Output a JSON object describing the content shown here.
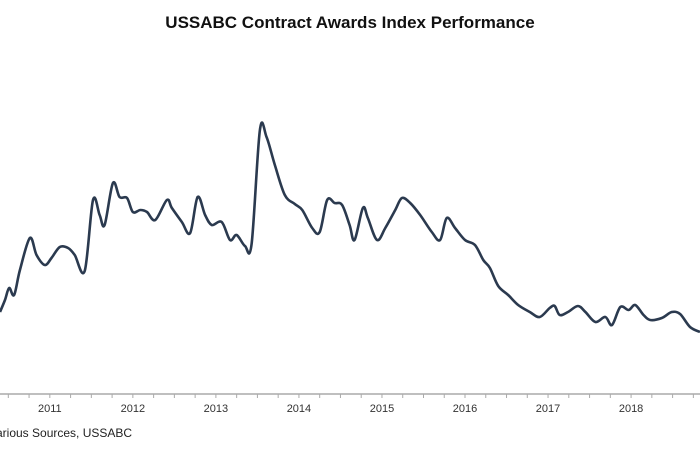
{
  "chart_data": {
    "type": "line",
    "title": "USSABC Contract Awards Index Performance",
    "source": "arious Sources, USSABC",
    "xlabel": "",
    "ylabel": "",
    "x_tick_labels": [
      "2011",
      "2012",
      "2013",
      "2014",
      "2015",
      "2016",
      "2017",
      "2018"
    ],
    "xlim": [
      2010.9,
      2019.33
    ],
    "ylim": [
      0,
      400
    ],
    "grid": false,
    "line_color": "#2b3a4f",
    "axis_color": "#aaaaaa",
    "series": [
      {
        "x": [
          2010.9,
          2010.96,
          2011.01,
          2011.07,
          2011.14,
          2011.26,
          2011.34,
          2011.44,
          2011.52,
          2011.62,
          2011.72,
          2011.8,
          2011.92,
          2012.02,
          2012.1,
          2012.16,
          2012.26,
          2012.34,
          2012.43,
          2012.5,
          2012.59,
          2012.67,
          2012.77,
          2012.91,
          2012.97,
          2013.09,
          2013.19,
          2013.28,
          2013.37,
          2013.45,
          2013.57,
          2013.67,
          2013.75,
          2013.85,
          2013.93,
          2014.03,
          2014.11,
          2014.21,
          2014.33,
          2014.45,
          2014.54,
          2014.66,
          2014.75,
          2014.84,
          2014.93,
          2015.02,
          2015.11,
          2015.17,
          2015.27,
          2015.33,
          2015.44,
          2015.54,
          2015.66,
          2015.74,
          2015.84,
          2015.96,
          2016.1,
          2016.2,
          2016.28,
          2016.38,
          2016.5,
          2016.62,
          2016.72,
          2016.8,
          2016.9,
          2017.02,
          2017.14,
          2017.28,
          2017.4,
          2017.52,
          2017.58,
          2017.64,
          2017.74,
          2017.86,
          2017.95,
          2018.07,
          2018.19,
          2018.27,
          2018.37,
          2018.47,
          2018.55,
          2018.65,
          2018.73,
          2018.87,
          2018.99,
          2019.09,
          2019.21,
          2019.33
        ],
        "y": [
          88,
          100,
          112,
          105,
          130,
          162,
          145,
          135,
          142,
          153,
          152,
          145,
          129,
          200,
          185,
          175,
          217,
          203,
          202,
          188,
          190,
          188,
          180,
          200,
          192,
          178,
          167,
          203,
          185,
          175,
          178,
          160,
          165,
          154,
          156,
          270,
          263,
          235,
          205,
          196,
          190,
          172,
          168,
          200,
          197,
          195,
          175,
          160,
          192,
          182,
          160,
          172,
          190,
          202,
          197,
          185,
          168,
          160,
          182,
          172,
          160,
          155,
          140,
          132,
          114,
          105,
          95,
          88,
          83,
          92,
          94,
          85,
          88,
          94,
          88,
          78,
          83,
          75,
          93,
          90,
          95,
          85,
          80,
          82,
          88,
          86,
          73,
          68
        ]
      }
    ]
  }
}
